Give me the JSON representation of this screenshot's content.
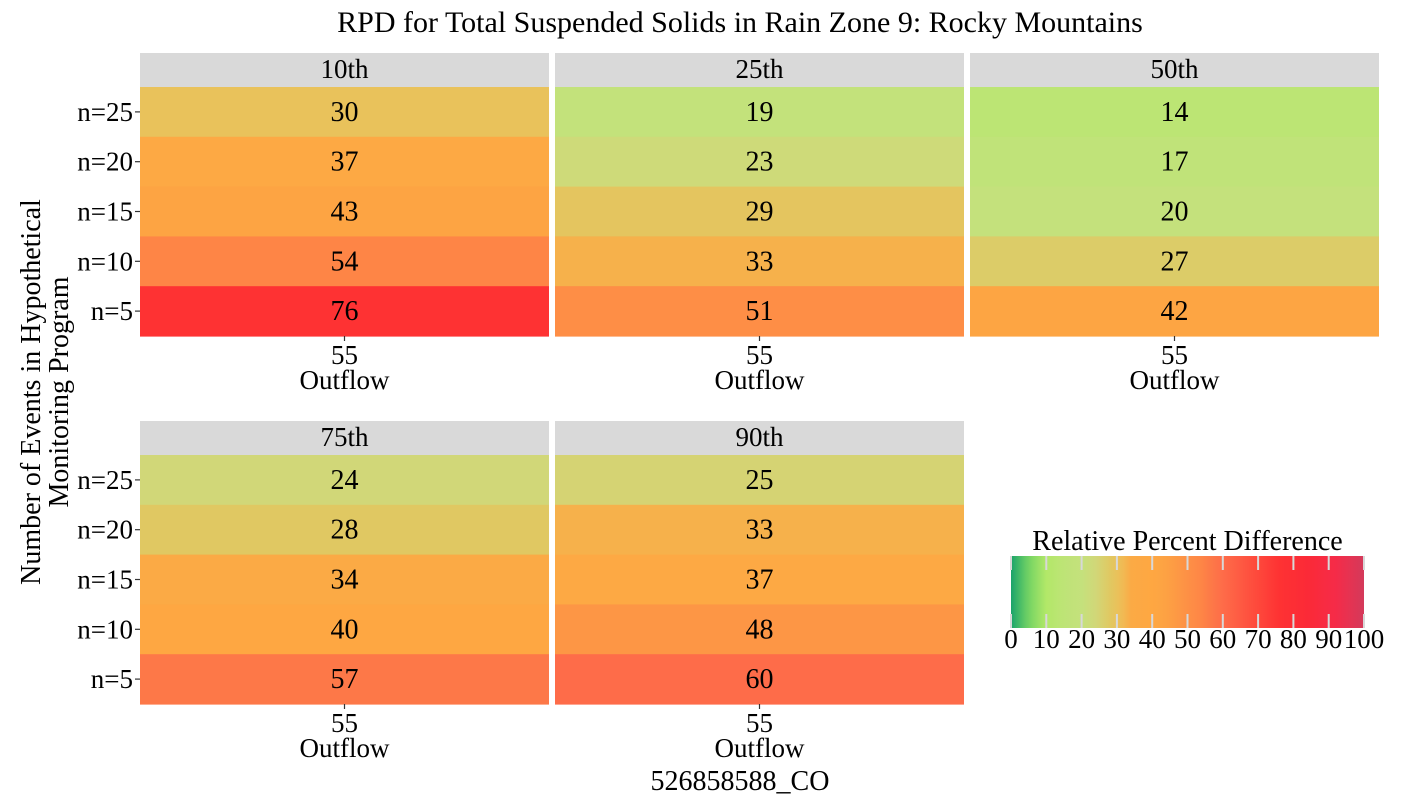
{
  "chart_data": {
    "type": "heatmap",
    "title": "RPD for Total Suspended Solids in Rain Zone 9: Rocky Mountains",
    "xlabel": "526858588_CO",
    "ylabel_lines": [
      "Number of Events in Hypothetical",
      "Monitoring Program"
    ],
    "x_tick": "55",
    "x_subtick": "Outflow",
    "rows": [
      "n=25",
      "n=20",
      "n=15",
      "n=10",
      "n=5"
    ],
    "panels": [
      {
        "label": "10th",
        "values": [
          30,
          37,
          43,
          54,
          76
        ]
      },
      {
        "label": "25th",
        "values": [
          19,
          23,
          29,
          33,
          51
        ]
      },
      {
        "label": "50th",
        "values": [
          14,
          17,
          20,
          27,
          42
        ]
      },
      {
        "label": "75th",
        "values": [
          24,
          28,
          34,
          40,
          57
        ]
      },
      {
        "label": "90th",
        "values": [
          25,
          33,
          37,
          48,
          60
        ]
      }
    ],
    "legend": {
      "title": "Relative Percent Difference",
      "ticks": [
        0,
        10,
        20,
        30,
        40,
        50,
        60,
        70,
        80,
        90,
        100
      ],
      "range": [
        0,
        100
      ],
      "placement": "bottom-right"
    },
    "color_scale": [
      {
        "v": 0,
        "c": "#1aa36b"
      },
      {
        "v": 5,
        "c": "#75d463"
      },
      {
        "v": 10,
        "c": "#b2e868"
      },
      {
        "v": 15,
        "c": "#bee477"
      },
      {
        "v": 20,
        "c": "#c4e17c"
      },
      {
        "v": 24,
        "c": "#d1d778"
      },
      {
        "v": 28,
        "c": "#e0c862"
      },
      {
        "v": 31,
        "c": "#edbf58"
      },
      {
        "v": 34,
        "c": "#fbaa45"
      },
      {
        "v": 40,
        "c": "#fea742"
      },
      {
        "v": 43,
        "c": "#fda443"
      },
      {
        "v": 48,
        "c": "#fd9645"
      },
      {
        "v": 54,
        "c": "#fe8546"
      },
      {
        "v": 57,
        "c": "#fd7848"
      },
      {
        "v": 60,
        "c": "#fe6c49"
      },
      {
        "v": 76,
        "c": "#fe3233"
      },
      {
        "v": 84,
        "c": "#fb2a37"
      },
      {
        "v": 92,
        "c": "#f52b48"
      },
      {
        "v": 100,
        "c": "#d43a5b"
      }
    ]
  }
}
